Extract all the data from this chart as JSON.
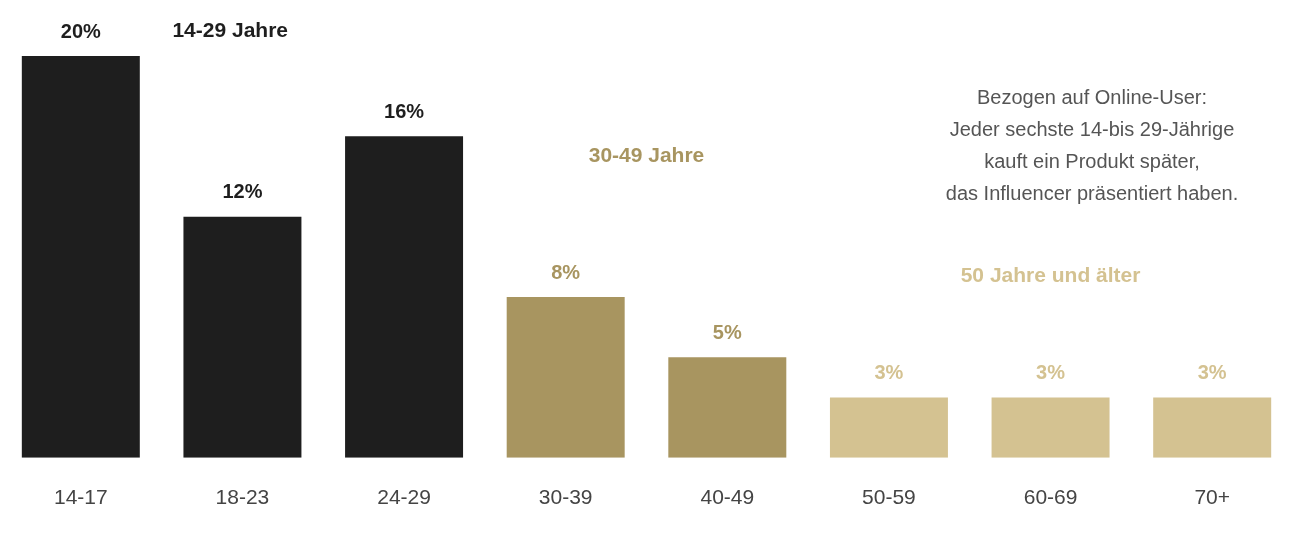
{
  "chart_data": {
    "type": "bar",
    "categories": [
      "14-17",
      "18-23",
      "24-29",
      "30-39",
      "40-49",
      "50-59",
      "60-69",
      "70+"
    ],
    "values": [
      20,
      12,
      16,
      8,
      5,
      3,
      3,
      3
    ],
    "colors": [
      "#1e1e1e",
      "#1e1e1e",
      "#1e1e1e",
      "#a89560",
      "#a89560",
      "#d4c291",
      "#d4c291",
      "#d4c291"
    ],
    "value_labels": [
      "20%",
      "12%",
      "16%",
      "8%",
      "5%",
      "3%",
      "3%",
      "3%"
    ],
    "annotations": [
      "14-29 Jahre",
      "30-49 Jahre",
      "50 Jahre und älter",
      "Bezogen auf Online-User:\nJeder sechste 14-bis 29-Jährige\nkauft ein Produkt später,\ndas Influencer präsentiert haben."
    ],
    "grid": false,
    "legend": false
  }
}
